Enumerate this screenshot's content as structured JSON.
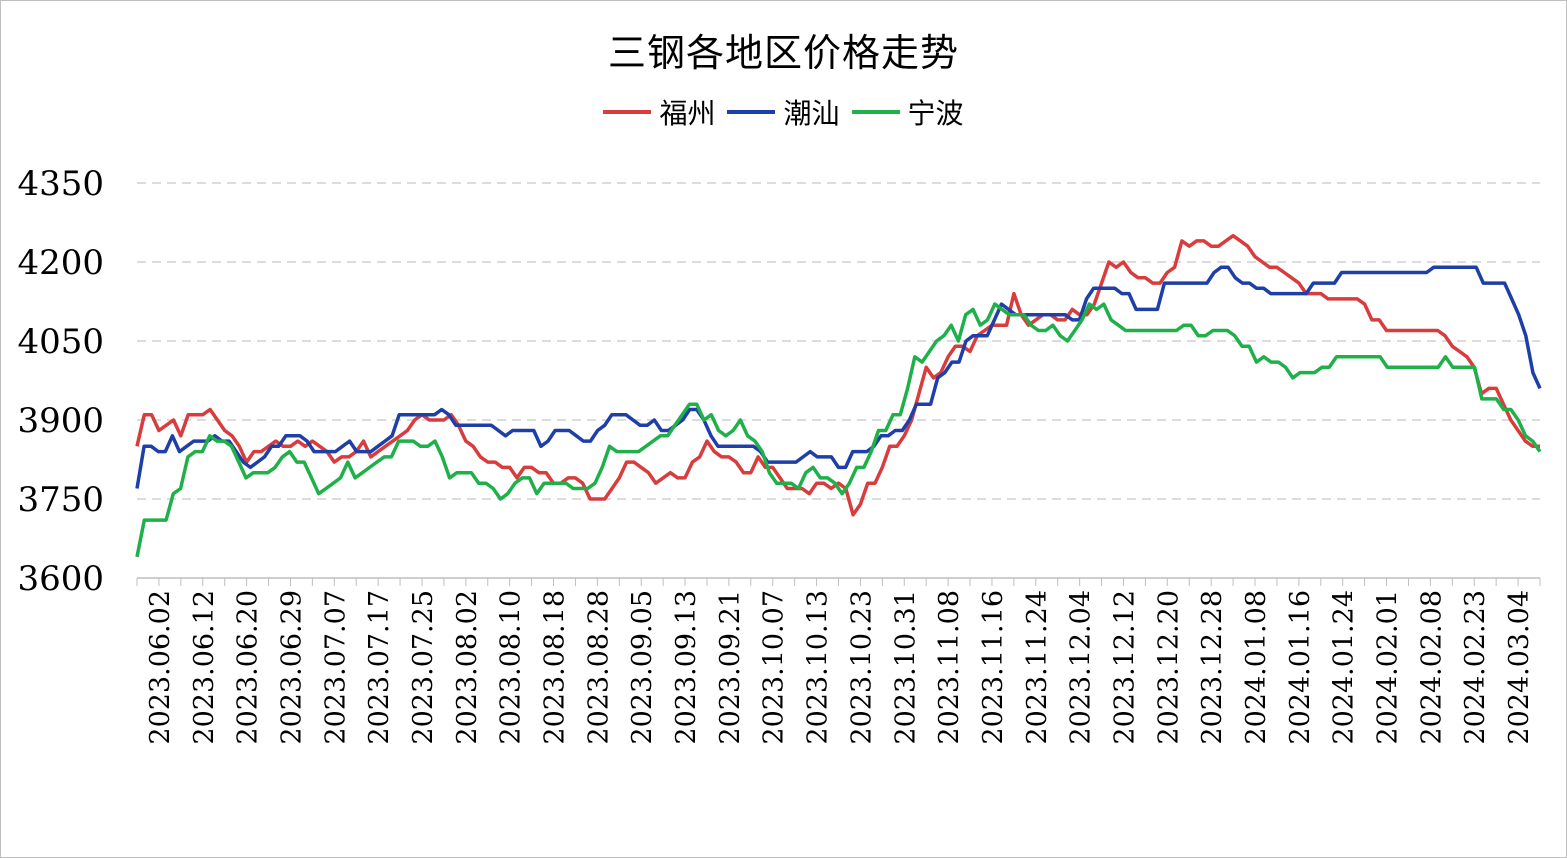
{
  "chart_data": {
    "type": "line",
    "title": "三钢各地区价格走势",
    "legend_position": "top",
    "grid": "horizontal-dashed",
    "ylim": [
      3600,
      4350
    ],
    "yticks": [
      3600,
      3750,
      3900,
      4050,
      4200,
      4350
    ],
    "xtick_labels": [
      "2023.06.02",
      "2023.06.12",
      "2023.06.20",
      "2023.06.29",
      "2023.07.07",
      "2023.07.17",
      "2023.07.25",
      "2023.08.02",
      "2023.08.10",
      "2023.08.18",
      "2023.08.28",
      "2023.09.05",
      "2023.09.13",
      "2023.09.21",
      "2023.10.07",
      "2023.10.13",
      "2023.10.23",
      "2023.10.31",
      "2023.11.08",
      "2023.11.16",
      "2023.11.24",
      "2023.12.04",
      "2023.12.12",
      "2023.12.20",
      "2023.12.28",
      "2024.01.08",
      "2024.01.16",
      "2024.01.24",
      "2024.02.01",
      "2024.02.08",
      "2024.02.23",
      "2024.03.04"
    ],
    "series": [
      {
        "name": "福州",
        "color": "#d93c3c",
        "values": [
          3850,
          3910,
          3910,
          3880,
          3890,
          3900,
          3870,
          3910,
          3910,
          3910,
          3920,
          3900,
          3880,
          3870,
          3850,
          3820,
          3840,
          3840,
          3850,
          3860,
          3850,
          3850,
          3860,
          3850,
          3860,
          3850,
          3840,
          3820,
          3830,
          3830,
          3840,
          3860,
          3830,
          3840,
          3850,
          3860,
          3870,
          3880,
          3900,
          3910,
          3900,
          3900,
          3900,
          3910,
          3890,
          3860,
          3850,
          3830,
          3820,
          3820,
          3810,
          3810,
          3790,
          3810,
          3810,
          3800,
          3800,
          3780,
          3780,
          3790,
          3790,
          3780,
          3750,
          3750,
          3750,
          3770,
          3790,
          3820,
          3820,
          3810,
          3800,
          3780,
          3790,
          3800,
          3790,
          3790,
          3820,
          3830,
          3860,
          3840,
          3830,
          3830,
          3820,
          3800,
          3800,
          3830,
          3810,
          3810,
          3790,
          3770,
          3770,
          3770,
          3760,
          3780,
          3780,
          3770,
          3780,
          3770,
          3720,
          3740,
          3780,
          3780,
          3810,
          3850,
          3850,
          3870,
          3900,
          3950,
          4000,
          3980,
          3990,
          4020,
          4040,
          4040,
          4030,
          4060,
          4070,
          4080,
          4080,
          4080,
          4140,
          4100,
          4080,
          4090,
          4100,
          4100,
          4090,
          4090,
          4110,
          4100,
          4100,
          4120,
          4160,
          4200,
          4190,
          4200,
          4180,
          4170,
          4170,
          4160,
          4160,
          4180,
          4190,
          4240,
          4230,
          4240,
          4240,
          4230,
          4230,
          4240,
          4250,
          4240,
          4230,
          4210,
          4200,
          4190,
          4190,
          4180,
          4170,
          4160,
          4140,
          4140,
          4140,
          4130,
          4130,
          4130,
          4130,
          4130,
          4120,
          4090,
          4090,
          4070,
          4070,
          4070,
          4070,
          4070,
          4070,
          4070,
          4070,
          4060,
          4040,
          4030,
          4020,
          4000,
          3950,
          3960,
          3960,
          3930,
          3900,
          3880,
          3860,
          3850,
          3850
        ]
      },
      {
        "name": "潮汕",
        "color": "#1f3fa8",
        "values": [
          3770,
          3850,
          3850,
          3840,
          3840,
          3870,
          3840,
          3850,
          3860,
          3860,
          3860,
          3870,
          3860,
          3860,
          3840,
          3820,
          3810,
          3820,
          3830,
          3850,
          3850,
          3870,
          3870,
          3870,
          3860,
          3840,
          3840,
          3840,
          3840,
          3850,
          3860,
          3840,
          3840,
          3840,
          3850,
          3860,
          3870,
          3910,
          3910,
          3910,
          3910,
          3910,
          3910,
          3920,
          3910,
          3890,
          3890,
          3890,
          3890,
          3890,
          3890,
          3880,
          3870,
          3880,
          3880,
          3880,
          3880,
          3850,
          3860,
          3880,
          3880,
          3880,
          3870,
          3860,
          3860,
          3880,
          3890,
          3910,
          3910,
          3910,
          3900,
          3890,
          3890,
          3900,
          3880,
          3880,
          3890,
          3900,
          3920,
          3920,
          3900,
          3870,
          3850,
          3850,
          3850,
          3850,
          3850,
          3850,
          3840,
          3820,
          3820,
          3820,
          3820,
          3820,
          3830,
          3840,
          3830,
          3830,
          3830,
          3810,
          3810,
          3840,
          3840,
          3840,
          3850,
          3870,
          3870,
          3880,
          3880,
          3900,
          3930,
          3930,
          3930,
          3980,
          3990,
          4010,
          4010,
          4050,
          4060,
          4060,
          4060,
          4090,
          4120,
          4110,
          4100,
          4100,
          4100,
          4100,
          4100,
          4100,
          4100,
          4100,
          4090,
          4090,
          4130,
          4150,
          4150,
          4150,
          4150,
          4140,
          4140,
          4110,
          4110,
          4110,
          4110,
          4160,
          4160,
          4160,
          4160,
          4160,
          4160,
          4160,
          4180,
          4190,
          4190,
          4170,
          4160,
          4160,
          4150,
          4150,
          4140,
          4140,
          4140,
          4140,
          4140,
          4140,
          4160,
          4160,
          4160,
          4160,
          4180,
          4180,
          4180,
          4180,
          4180,
          4180,
          4180,
          4180,
          4180,
          4180,
          4180,
          4180,
          4180,
          4190,
          4190,
          4190,
          4190,
          4190,
          4190,
          4190,
          4160,
          4160,
          4160,
          4160,
          4130,
          4100,
          4060,
          3990,
          3960
        ]
      },
      {
        "name": "宁波",
        "color": "#1fb04a",
        "values": [
          3640,
          3710,
          3710,
          3710,
          3710,
          3760,
          3770,
          3830,
          3840,
          3840,
          3870,
          3860,
          3860,
          3850,
          3820,
          3790,
          3800,
          3800,
          3800,
          3810,
          3830,
          3840,
          3820,
          3820,
          3790,
          3760,
          3770,
          3780,
          3790,
          3820,
          3790,
          3800,
          3810,
          3820,
          3830,
          3830,
          3860,
          3860,
          3860,
          3850,
          3850,
          3860,
          3830,
          3790,
          3800,
          3800,
          3800,
          3780,
          3780,
          3770,
          3750,
          3760,
          3780,
          3790,
          3790,
          3760,
          3780,
          3780,
          3780,
          3780,
          3770,
          3770,
          3770,
          3780,
          3810,
          3850,
          3840,
          3840,
          3840,
          3840,
          3850,
          3860,
          3870,
          3870,
          3890,
          3910,
          3930,
          3930,
          3900,
          3910,
          3880,
          3870,
          3880,
          3900,
          3870,
          3860,
          3840,
          3800,
          3780,
          3780,
          3780,
          3770,
          3800,
          3810,
          3790,
          3790,
          3780,
          3760,
          3780,
          3810,
          3810,
          3840,
          3880,
          3880,
          3910,
          3910,
          3960,
          4020,
          4010,
          4030,
          4050,
          4060,
          4080,
          4050,
          4100,
          4110,
          4080,
          4090,
          4120,
          4110,
          4100,
          4100,
          4100,
          4080,
          4070,
          4070,
          4080,
          4060,
          4050,
          4070,
          4090,
          4120,
          4110,
          4120,
          4090,
          4080,
          4070,
          4070,
          4070,
          4070,
          4070,
          4070,
          4070,
          4070,
          4080,
          4080,
          4060,
          4060,
          4070,
          4070,
          4070,
          4060,
          4040,
          4040,
          4010,
          4020,
          4010,
          4010,
          4000,
          3980,
          3990,
          3990,
          3990,
          4000,
          4000,
          4020,
          4020,
          4020,
          4020,
          4020,
          4020,
          4020,
          4000,
          4000,
          4000,
          4000,
          4000,
          4000,
          4000,
          4000,
          4020,
          4000,
          4000,
          4000,
          4000,
          3940,
          3940,
          3940,
          3920,
          3920,
          3900,
          3870,
          3860,
          3840
        ]
      }
    ]
  }
}
